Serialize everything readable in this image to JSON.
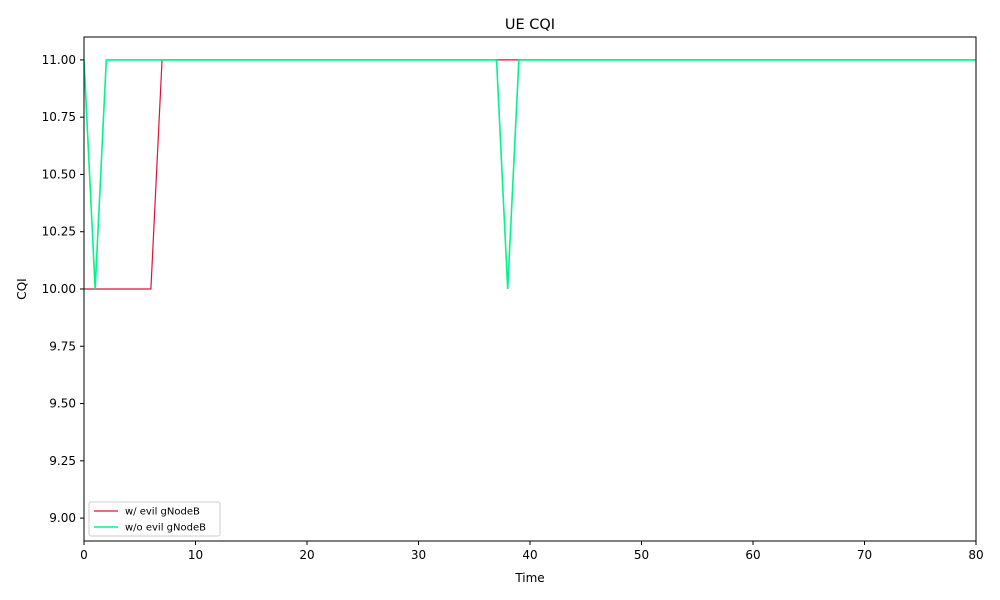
{
  "chart_data": {
    "type": "line",
    "title": "UE CQI",
    "xlabel": "Time",
    "ylabel": "CQI",
    "xlim": [
      0,
      80
    ],
    "ylim": [
      8.9,
      11.1
    ],
    "xticks": [
      0,
      10,
      20,
      30,
      40,
      50,
      60,
      70,
      80
    ],
    "yticks": [
      9.0,
      9.25,
      9.5,
      9.75,
      10.0,
      10.25,
      10.5,
      10.75,
      11.0
    ],
    "ytick_labels": [
      "9.00",
      "9.25",
      "9.50",
      "9.75",
      "10.00",
      "10.25",
      "10.50",
      "10.75",
      "11.00"
    ],
    "grid": false,
    "legend_position": "lower-left",
    "series": [
      {
        "name": "w/ evil gNodeB",
        "color": "#e3103a",
        "x": [
          0,
          1,
          2,
          3,
          4,
          5,
          6,
          7,
          37,
          38,
          39,
          80
        ],
        "y": [
          10,
          10,
          10,
          10,
          10,
          10,
          10,
          11,
          11,
          11,
          11,
          11
        ]
      },
      {
        "name": "w/o evil gNodeB",
        "color": "#00f58a",
        "x": [
          0,
          1,
          2,
          37,
          38,
          39,
          80
        ],
        "y": [
          11,
          10,
          11,
          11,
          10,
          11,
          11
        ]
      }
    ]
  }
}
